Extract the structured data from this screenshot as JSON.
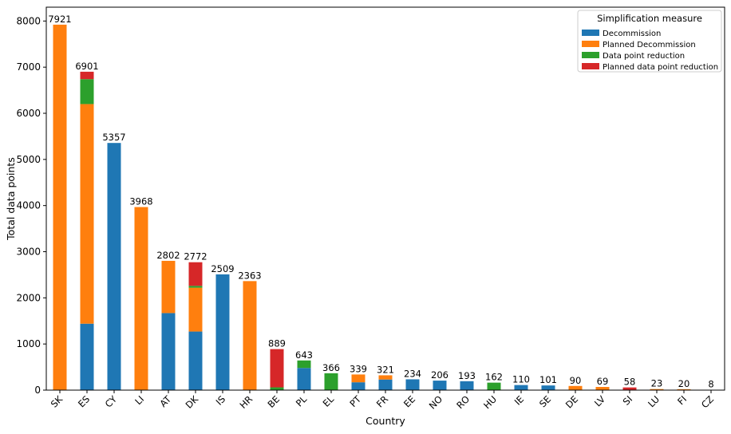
{
  "chart_data": {
    "type": "bar",
    "stacked": true,
    "xlabel": "Country",
    "ylabel": "Total data points",
    "ylim": [
      0,
      8300
    ],
    "yticks": [
      0,
      1000,
      2000,
      3000,
      4000,
      5000,
      6000,
      7000,
      8000
    ],
    "categories": [
      "SK",
      "ES",
      "CY",
      "LI",
      "AT",
      "DK",
      "IS",
      "HR",
      "BE",
      "PL",
      "EL",
      "PT",
      "FR",
      "EE",
      "NO",
      "RO",
      "HU",
      "IE",
      "SE",
      "DE",
      "LV",
      "SI",
      "LU",
      "FI",
      "CZ"
    ],
    "totals": [
      7921,
      6901,
      5357,
      3968,
      2802,
      2772,
      2509,
      2363,
      889,
      643,
      366,
      339,
      321,
      234,
      206,
      193,
      162,
      110,
      101,
      90,
      69,
      58,
      23,
      20,
      8
    ],
    "series": [
      {
        "name": "Decommission",
        "color": "#1f77b4",
        "values": [
          0,
          1440,
          5357,
          0,
          1670,
          1270,
          2509,
          0,
          0,
          480,
          0,
          170,
          230,
          234,
          206,
          193,
          0,
          110,
          101,
          0,
          0,
          0,
          0,
          0,
          0
        ]
      },
      {
        "name": "Planned Decommission",
        "color": "#ff7f0e",
        "values": [
          7921,
          4760,
          0,
          3968,
          1132,
          950,
          0,
          2363,
          0,
          0,
          0,
          169,
          91,
          0,
          0,
          0,
          0,
          0,
          0,
          90,
          69,
          0,
          23,
          20,
          8
        ]
      },
      {
        "name": "Data point reduction",
        "color": "#2ca02c",
        "values": [
          0,
          540,
          0,
          0,
          0,
          40,
          0,
          0,
          60,
          163,
          366,
          0,
          0,
          0,
          0,
          0,
          162,
          0,
          0,
          0,
          0,
          0,
          0,
          0,
          0
        ]
      },
      {
        "name": "Planned data point reduction",
        "color": "#d62728",
        "values": [
          0,
          161,
          0,
          0,
          0,
          512,
          0,
          0,
          829,
          0,
          0,
          0,
          0,
          0,
          0,
          0,
          0,
          0,
          0,
          0,
          0,
          58,
          0,
          0,
          0
        ]
      }
    ],
    "legend": {
      "title": "Simplification measure",
      "placement": "top-right"
    },
    "grid": false
  }
}
